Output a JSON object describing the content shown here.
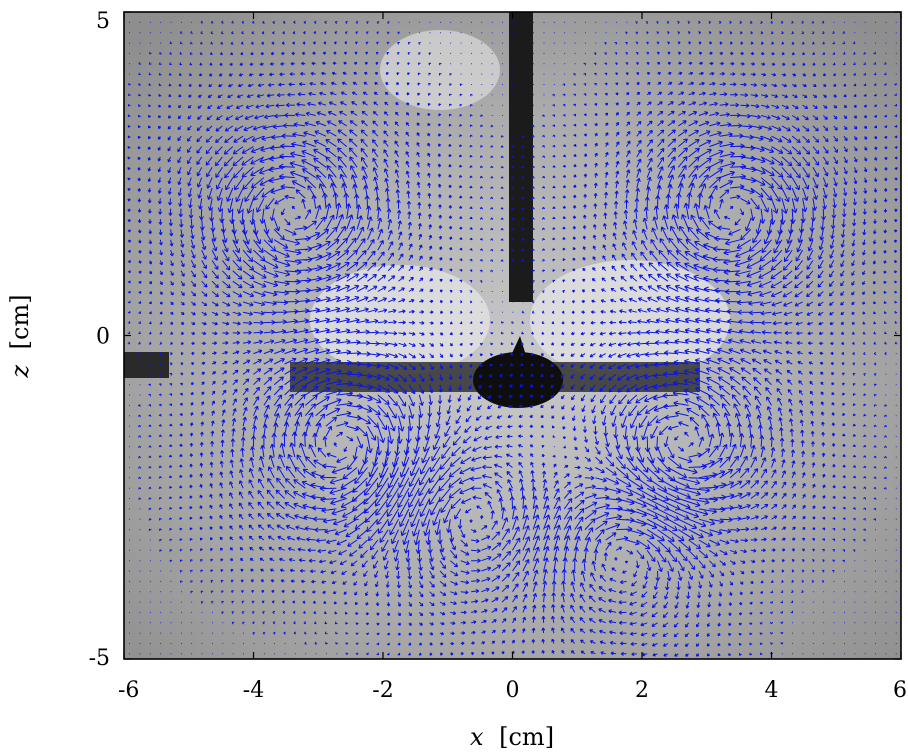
{
  "chart_data": {
    "type": "vector-field",
    "title": "",
    "xlabel_var": "x",
    "xlabel_unit": "[cm]",
    "ylabel_var": "z",
    "ylabel_unit": "[cm]",
    "xlim": [
      -6,
      6
    ],
    "ylim": [
      -5,
      5
    ],
    "xticks": [
      -6,
      -4,
      -2,
      0,
      2,
      4,
      6
    ],
    "yticks": [
      -5,
      0,
      5
    ],
    "xtick_labels": [
      "-6",
      "-4",
      "-2",
      "0",
      "2",
      "4",
      "6"
    ],
    "ytick_labels": [
      "-5",
      "0",
      "5"
    ],
    "grid": false,
    "arrow_color": "#0a14e6",
    "background": "grayscale-photograph",
    "vortices": [
      {
        "x": -3.4,
        "z": 1.9,
        "strength": 1.0
      },
      {
        "x": 3.4,
        "z": 1.9,
        "strength": -1.0
      },
      {
        "x": -2.6,
        "z": -1.7,
        "strength": -1.0
      },
      {
        "x": 2.6,
        "z": -1.7,
        "strength": 1.0
      },
      {
        "x": -0.6,
        "z": -2.8,
        "strength": 0.7
      },
      {
        "x": 1.7,
        "z": -3.3,
        "strength": -0.7
      }
    ]
  }
}
